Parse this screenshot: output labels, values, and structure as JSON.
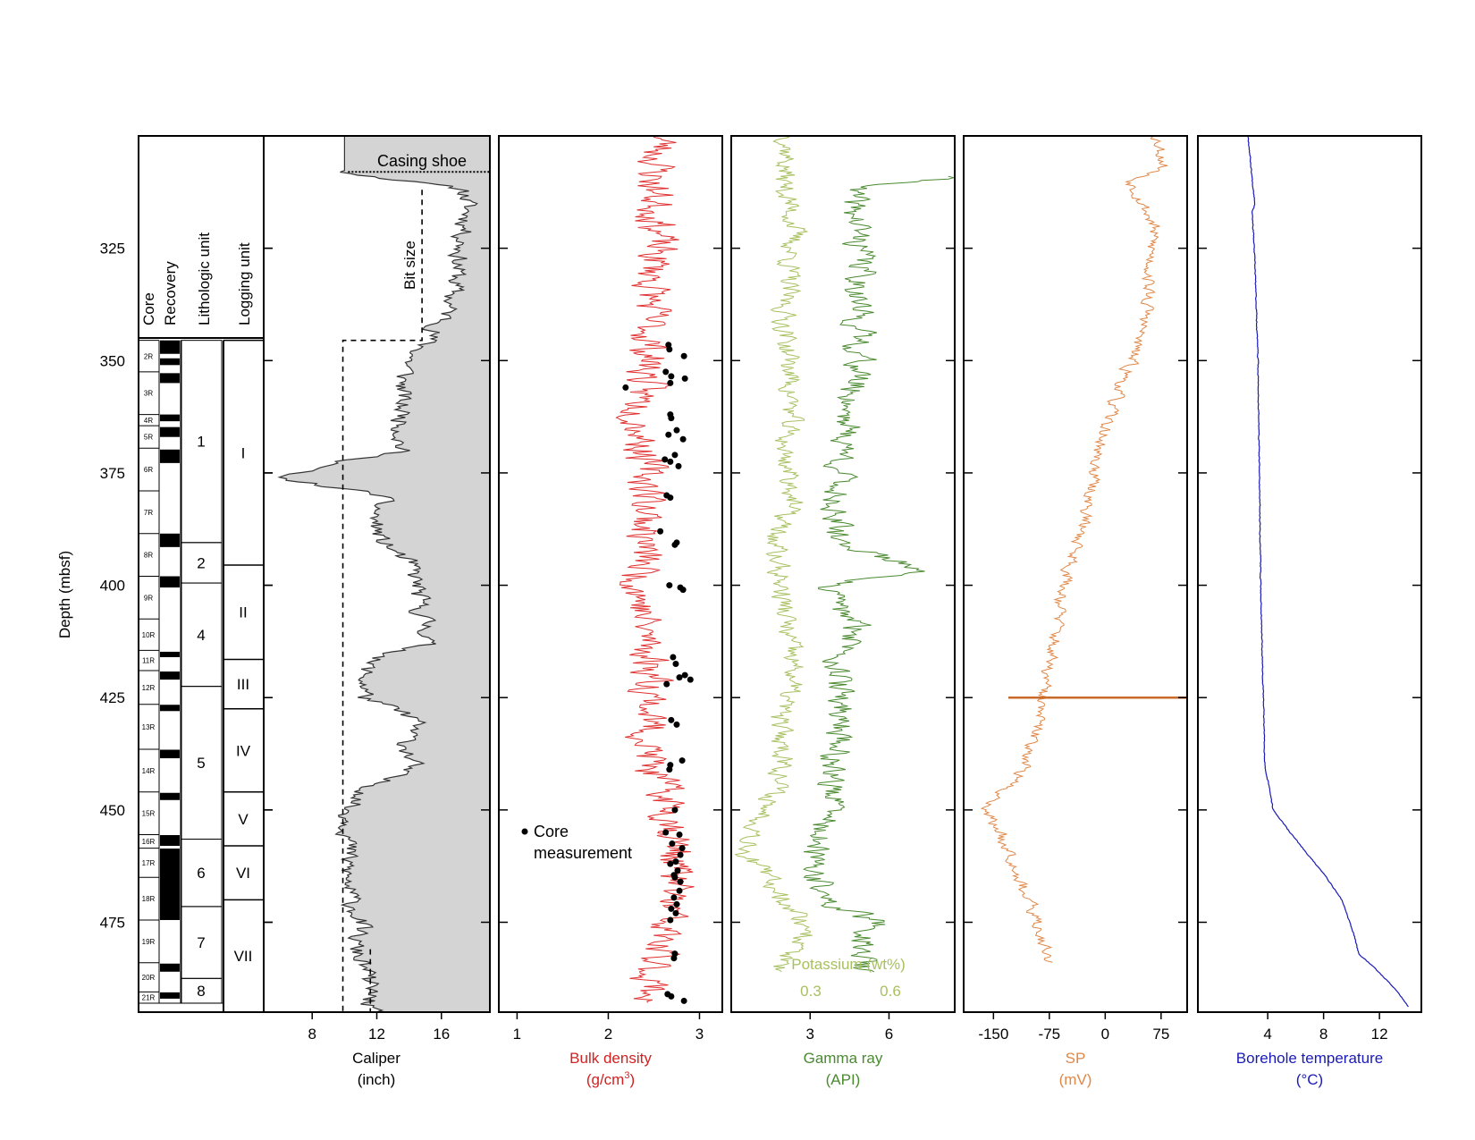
{
  "figure": {
    "depth_axis": {
      "label": "Depth (mbsf)",
      "min": 300,
      "max": 495,
      "ticks": [
        325,
        350,
        375,
        400,
        425,
        450,
        475
      ]
    },
    "core_panel": {
      "headers": [
        "Core",
        "Recovery",
        "Lithologic unit",
        "Logging unit"
      ],
      "cores": [
        {
          "label": "2R",
          "top": 345.5,
          "bottom": 352.5
        },
        {
          "label": "3R",
          "top": 352.5,
          "bottom": 362.0
        },
        {
          "label": "4R",
          "top": 362.0,
          "bottom": 364.5
        },
        {
          "label": "5R",
          "top": 364.5,
          "bottom": 369.5
        },
        {
          "label": "6R",
          "top": 369.5,
          "bottom": 379.0
        },
        {
          "label": "7R",
          "top": 379.0,
          "bottom": 388.5
        },
        {
          "label": "8R",
          "top": 388.5,
          "bottom": 398.0
        },
        {
          "label": "9R",
          "top": 398.0,
          "bottom": 407.5
        },
        {
          "label": "10R",
          "top": 407.5,
          "bottom": 414.5
        },
        {
          "label": "11R",
          "top": 414.5,
          "bottom": 419.0
        },
        {
          "label": "12R",
          "top": 419.0,
          "bottom": 426.5
        },
        {
          "label": "13R",
          "top": 426.5,
          "bottom": 436.5
        },
        {
          "label": "14R",
          "top": 436.5,
          "bottom": 446.0
        },
        {
          "label": "15R",
          "top": 446.0,
          "bottom": 455.5
        },
        {
          "label": "16R",
          "top": 455.5,
          "bottom": 458.5
        },
        {
          "label": "17R",
          "top": 458.5,
          "bottom": 465.0
        },
        {
          "label": "18R",
          "top": 465.0,
          "bottom": 474.5
        },
        {
          "label": "19R",
          "top": 474.5,
          "bottom": 484.0
        },
        {
          "label": "20R",
          "top": 484.0,
          "bottom": 490.5
        },
        {
          "label": "21R",
          "top": 490.5,
          "bottom": 493.0
        }
      ],
      "recovery": [
        [
          345.5,
          348.5
        ],
        [
          349.5,
          351.0
        ],
        [
          352.8,
          355.0
        ],
        [
          362.0,
          363.5
        ],
        [
          364.8,
          367.0
        ],
        [
          369.8,
          372.8
        ],
        [
          388.5,
          391.5
        ],
        [
          398.0,
          400.5
        ],
        [
          414.8,
          416.0
        ],
        [
          419.2,
          421.0
        ],
        [
          426.6,
          428.0
        ],
        [
          436.6,
          438.5
        ],
        [
          446.2,
          447.8
        ],
        [
          455.6,
          458.0
        ],
        [
          458.6,
          474.5
        ],
        [
          484.2,
          486.0
        ],
        [
          490.6,
          492.0
        ]
      ],
      "lithologic_units": [
        {
          "label": "1",
          "top": 345.5,
          "bottom": 390.5
        },
        {
          "label": "2",
          "top": 390.5,
          "bottom": 399.5
        },
        {
          "label": "4",
          "top": 399.5,
          "bottom": 422.5
        },
        {
          "label": "5",
          "top": 422.5,
          "bottom": 456.5
        },
        {
          "label": "6",
          "top": 456.5,
          "bottom": 471.5
        },
        {
          "label": "7",
          "top": 471.5,
          "bottom": 487.5
        },
        {
          "label": "8",
          "top": 487.5,
          "bottom": 493.0
        }
      ],
      "logging_units": [
        {
          "label": "I",
          "top": 345.5,
          "bottom": 395.5
        },
        {
          "label": "II",
          "top": 395.5,
          "bottom": 416.5
        },
        {
          "label": "III",
          "top": 416.5,
          "bottom": 427.5
        },
        {
          "label": "IV",
          "top": 427.5,
          "bottom": 446.0
        },
        {
          "label": "V",
          "top": 446.0,
          "bottom": 458.0
        },
        {
          "label": "VI",
          "top": 458.0,
          "bottom": 470.0
        },
        {
          "label": "VII",
          "top": 470.0,
          "bottom": 495.0
        }
      ]
    }
  },
  "chart_data": [
    {
      "type": "area",
      "track": "caliper",
      "xlabel": "Caliper",
      "unit": "(inch)",
      "xlim": [
        5,
        19
      ],
      "xticks": [
        8,
        12,
        16
      ],
      "color": "#333333",
      "fill": "#d4d4d4",
      "annotations": {
        "casing_shoe": "Casing shoe",
        "bit_size": "Bit size"
      },
      "casing_shoe_depth": 308,
      "bit_size": [
        {
          "from": 312,
          "to": 345.5,
          "value": 14.8
        },
        {
          "from": 345.5,
          "to": 495,
          "value": 9.9
        }
      ],
      "depth": [
        300,
        308,
        312,
        318,
        325,
        332,
        340,
        345.5,
        350,
        355,
        359,
        362,
        370,
        376,
        380,
        385,
        390,
        395,
        400,
        405,
        410,
        413,
        417,
        420,
        425,
        430,
        435,
        440,
        445,
        450,
        455,
        460,
        465,
        470,
        475,
        480,
        485,
        490,
        495
      ],
      "values": [
        10.0,
        10.0,
        17.5,
        17.6,
        17.2,
        16.9,
        16.3,
        15.2,
        14.0,
        13.6,
        13.5,
        13.6,
        13.5,
        5.5,
        12.4,
        11.8,
        12.2,
        14.0,
        14.5,
        14.6,
        15.2,
        15.0,
        11.5,
        11.2,
        11.3,
        14.5,
        13.8,
        14.2,
        11.6,
        10.2,
        10.3,
        10.2,
        10.1,
        10.4,
        11.0,
        10.6,
        11.2,
        11.6,
        11.6
      ],
      "noise": 1.0
    },
    {
      "type": "line",
      "track": "bulk_density",
      "xlabel": "Bulk density",
      "unit": "(g/cm",
      "unit_sup": "3",
      "unit_end": ")",
      "xlim": [
        0.8,
        3.25
      ],
      "xticks": [
        1,
        2,
        3
      ],
      "color": "#e03030",
      "depth": [
        300,
        310,
        320,
        330,
        340,
        350,
        360,
        370,
        380,
        390,
        400,
        410,
        420,
        430,
        440,
        450,
        460,
        470,
        480,
        490,
        493
      ],
      "values": [
        2.6,
        2.5,
        2.55,
        2.5,
        2.45,
        2.45,
        2.35,
        2.4,
        2.45,
        2.4,
        2.35,
        2.4,
        2.5,
        2.45,
        2.45,
        2.7,
        2.75,
        2.7,
        2.55,
        2.45,
        2.5
      ],
      "noise": 0.35,
      "points_label": "Core measurement",
      "core_points": [
        [
          346.5,
          2.66
        ],
        [
          347.5,
          2.67
        ],
        [
          349,
          2.83
        ],
        [
          352.5,
          2.63
        ],
        [
          353.5,
          2.69
        ],
        [
          354,
          2.84
        ],
        [
          355,
          2.68
        ],
        [
          356,
          2.19
        ],
        [
          362,
          2.68
        ],
        [
          362.8,
          2.69
        ],
        [
          365.5,
          2.75
        ],
        [
          366.5,
          2.66
        ],
        [
          367.5,
          2.82
        ],
        [
          371,
          2.73
        ],
        [
          372,
          2.62
        ],
        [
          372.5,
          2.68
        ],
        [
          373.5,
          2.77
        ],
        [
          380,
          2.64
        ],
        [
          380.5,
          2.68
        ],
        [
          388,
          2.57
        ],
        [
          390.5,
          2.75
        ],
        [
          391,
          2.73
        ],
        [
          400,
          2.67
        ],
        [
          400.5,
          2.79
        ],
        [
          401,
          2.82
        ],
        [
          416,
          2.71
        ],
        [
          417.5,
          2.74
        ],
        [
          420,
          2.84
        ],
        [
          420.5,
          2.78
        ],
        [
          421,
          2.9
        ],
        [
          422,
          2.64
        ],
        [
          430,
          2.69
        ],
        [
          431,
          2.75
        ],
        [
          439,
          2.81
        ],
        [
          440,
          2.68
        ],
        [
          441,
          2.67
        ],
        [
          450,
          2.73
        ],
        [
          455,
          2.63
        ],
        [
          455.5,
          2.78
        ],
        [
          457.5,
          2.7
        ],
        [
          458.5,
          2.81
        ],
        [
          460,
          2.79
        ],
        [
          461.5,
          2.74
        ],
        [
          462,
          2.68
        ],
        [
          463.5,
          2.76
        ],
        [
          464.5,
          2.72
        ],
        [
          465,
          2.73
        ],
        [
          466,
          2.79
        ],
        [
          468,
          2.78
        ],
        [
          469.5,
          2.72
        ],
        [
          471,
          2.75
        ],
        [
          472,
          2.69
        ],
        [
          473,
          2.74
        ],
        [
          474.5,
          2.68
        ],
        [
          482,
          2.73
        ],
        [
          483,
          2.72
        ],
        [
          491,
          2.65
        ],
        [
          491.5,
          2.69
        ],
        [
          492.5,
          2.83
        ]
      ]
    },
    {
      "type": "line",
      "track": "gamma_ray",
      "xlabel": "Gamma ray",
      "unit": "(API)",
      "xlim": [
        0,
        8.5
      ],
      "xticks": [
        3,
        6
      ],
      "color": "#4a8a30",
      "depth": [
        309,
        312,
        320,
        330,
        340,
        350,
        360,
        370,
        380,
        390,
        397,
        400,
        410,
        420,
        430,
        440,
        450,
        460,
        470,
        475,
        480,
        486
      ],
      "values": [
        8.5,
        4.5,
        4.8,
        5.0,
        4.8,
        4.9,
        4.5,
        4.3,
        4.0,
        3.9,
        7.5,
        3.5,
        4.8,
        4.0,
        4.3,
        3.9,
        3.8,
        3.0,
        3.5,
        5.5,
        5.0,
        5.0
      ],
      "noise": 0.9,
      "secondary": {
        "name": "Potassium (wt%)",
        "ticks": [
          "0.3",
          "0.6"
        ],
        "tick_positions": [
          3,
          6
        ],
        "color": "#a8c060",
        "depth": [
          300,
          310,
          320,
          330,
          340,
          350,
          360,
          370,
          380,
          390,
          400,
          410,
          420,
          430,
          440,
          450,
          460,
          470,
          477,
          486
        ],
        "values": [
          2.2,
          2.0,
          2.4,
          2.2,
          2.0,
          2.2,
          2.3,
          2.0,
          2.4,
          1.6,
          1.9,
          2.1,
          2.4,
          1.8,
          2.1,
          1.3,
          0.6,
          2.1,
          3.0,
          1.6
        ],
        "noise": 0.7
      }
    },
    {
      "type": "line",
      "track": "sp",
      "xlabel": "SP",
      "unit": "(mV)",
      "xlim": [
        -190,
        110
      ],
      "xticks": [
        -150,
        -75,
        0,
        75
      ],
      "color": "#e08848",
      "depth": [
        300,
        307,
        310,
        320,
        330,
        340,
        350,
        360,
        370,
        380,
        390,
        400,
        410,
        420,
        425,
        430,
        440,
        450,
        460,
        470,
        478,
        484
      ],
      "values": [
        70,
        80,
        35,
        65,
        60,
        55,
        35,
        10,
        -10,
        -20,
        -35,
        -55,
        -65,
        -80,
        -85,
        -90,
        -105,
        -160,
        -125,
        -105,
        -85,
        -75
      ],
      "noise": 14,
      "spike": {
        "depth": 425,
        "from": -130,
        "to": 110
      }
    },
    {
      "type": "line",
      "track": "temperature",
      "xlabel": "Borehole temperature",
      "unit": "(°C)",
      "xlim": [
        -1,
        15
      ],
      "xticks": [
        4,
        8,
        12
      ],
      "color": "#1a1ab8",
      "depth": [
        300,
        310,
        315,
        317,
        330,
        350,
        400,
        440,
        450,
        455,
        460,
        465,
        470,
        478,
        482,
        485,
        490,
        494
      ],
      "values": [
        2.6,
        2.9,
        3.1,
        2.9,
        3.1,
        3.3,
        3.5,
        3.8,
        4.4,
        5.6,
        6.9,
        8.2,
        9.3,
        10.2,
        10.5,
        11.6,
        13.2,
        14.1
      ],
      "noise": 0.05
    }
  ]
}
